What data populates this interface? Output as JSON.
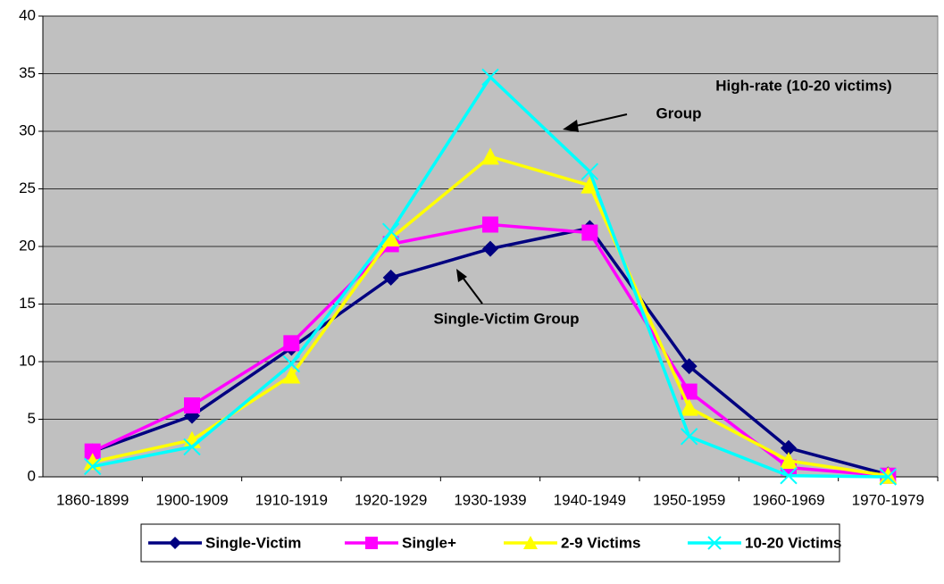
{
  "chart_data": {
    "type": "line",
    "categories": [
      "1860-1899",
      "1900-1909",
      "1910-1919",
      "1920-1929",
      "1930-1939",
      "1940-1949",
      "1950-1959",
      "1960-1969",
      "1970-1979"
    ],
    "series": [
      {
        "name": "Single-Victim",
        "color": "#000080",
        "marker": "diamond",
        "values": [
          2.2,
          5.3,
          11.2,
          17.3,
          19.8,
          21.6,
          9.6,
          2.5,
          0.2
        ]
      },
      {
        "name": "Single+",
        "color": "#ff00ff",
        "marker": "square",
        "values": [
          2.2,
          6.2,
          11.6,
          20.2,
          21.9,
          21.2,
          7.4,
          0.8,
          0.1
        ]
      },
      {
        "name": "2-9 Victims",
        "color": "#ffff00",
        "marker": "triangle",
        "values": [
          1.3,
          3.2,
          8.8,
          20.7,
          27.8,
          25.3,
          6.0,
          1.4,
          0.1
        ]
      },
      {
        "name": "10-20 Victims",
        "color": "#00ffff",
        "marker": "x",
        "values": [
          0.9,
          2.6,
          9.8,
          21.3,
          34.7,
          26.5,
          3.5,
          0.1,
          0.0
        ]
      }
    ],
    "ylim": [
      0,
      40
    ],
    "yticks": [
      0,
      5,
      10,
      15,
      20,
      25,
      30,
      35,
      40
    ],
    "grid": true,
    "legend": "bottom",
    "annotations": [
      {
        "lines": [
          "High-rate (10-20 victims)",
          "Group"
        ]
      },
      {
        "lines": [
          "Single-Victim Group"
        ]
      }
    ]
  }
}
